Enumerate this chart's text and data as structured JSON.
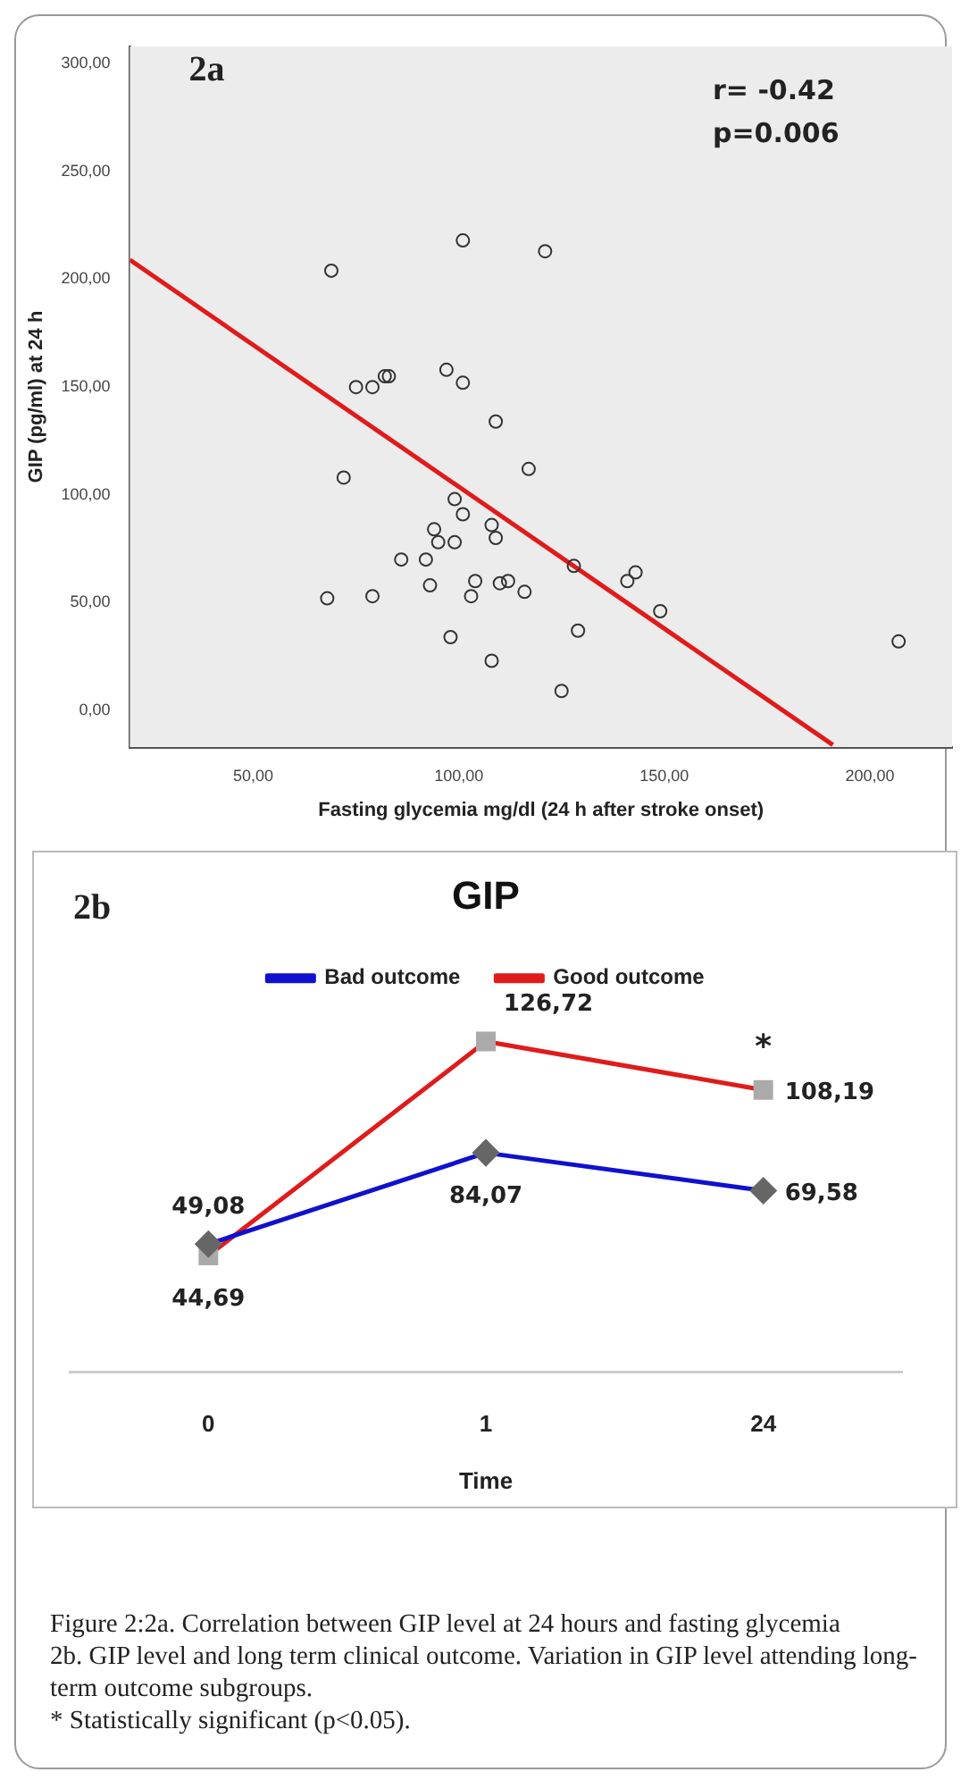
{
  "chart_data": [
    {
      "type": "scatter",
      "xlabel": "Fasting glycemia mg/dl (24 h after stroke onset)",
      "ylabel": "GIP (pg/ml) at 24 h",
      "annotations": [
        "2a",
        "r= -0.42",
        "p=0.006"
      ],
      "xlim": [
        20,
        220
      ],
      "xticks": [
        {
          "value": 50,
          "label": "50,00"
        },
        {
          "value": 100,
          "label": "100,00"
        },
        {
          "value": 150,
          "label": "150,00"
        },
        {
          "value": 200,
          "label": "200,00"
        }
      ],
      "ylim": [
        -17,
        308
      ],
      "yticks": [
        {
          "value": 0,
          "label": "0,00"
        },
        {
          "value": 50,
          "label": "50,00"
        },
        {
          "value": 100,
          "label": "100,00"
        },
        {
          "value": 150,
          "label": "150,00"
        },
        {
          "value": 200,
          "label": "200,00"
        },
        {
          "value": 250,
          "label": "250,00"
        },
        {
          "value": 300,
          "label": "300,00"
        }
      ],
      "grid": false,
      "marker": "circle",
      "series": [
        {
          "color": "#333333",
          "x": [
            69,
            101,
            121,
            75,
            79,
            82,
            83,
            97,
            101,
            109,
            72,
            117,
            99,
            101,
            94,
            95,
            99,
            108,
            109,
            86,
            92,
            128,
            141,
            143,
            93,
            104,
            110,
            112,
            116,
            68,
            79,
            103,
            149,
            98,
            129,
            108,
            125,
            207
          ],
          "values": [
            204,
            218,
            213,
            150,
            150,
            155,
            155,
            158,
            152,
            134,
            108,
            112,
            98,
            91,
            84,
            78,
            78,
            86,
            80,
            70,
            70,
            67,
            60,
            64,
            58,
            60,
            59,
            60,
            55,
            52,
            53,
            53,
            46,
            34,
            37,
            23,
            9,
            32
          ]
        },
        {
          "type": "line",
          "color": "#e01b1b",
          "marker": "none",
          "x": [
            20,
            191
          ],
          "values": [
            209,
            -16
          ]
        }
      ]
    },
    {
      "type": "line",
      "title": "GIP",
      "xlabel": "Time",
      "categories": [
        "0",
        "1",
        "24"
      ],
      "annotations": [
        "2b",
        {
          "text": "*",
          "x": "24",
          "y": 108.19
        },
        "Figure 2:2a. Correlation between GIP level at 24 hours and fasting glycemia",
        "2b. GIP level and long term clinical outcome. Variation in GIP level attending long-term outcome subgroups.",
        "* Statistically significant (p<0.05)."
      ],
      "legend": "top",
      "grid": false,
      "tick_labels": "x",
      "series": [
        {
          "name": "Bad outcome",
          "color": "#1010d0",
          "marker": "diamond",
          "values": [
            49.08,
            84.07,
            69.58
          ],
          "value_labels": [
            "49,08",
            "84,07",
            "69,58"
          ]
        },
        {
          "name": "Good outcome",
          "color": "#e01b1b",
          "marker": "square",
          "values": [
            44.69,
            126.72,
            108.19
          ],
          "value_labels": [
            "44,69",
            "126,72",
            "108,19"
          ]
        }
      ]
    }
  ]
}
